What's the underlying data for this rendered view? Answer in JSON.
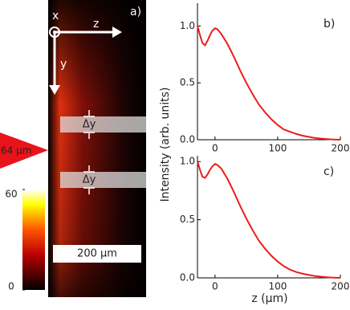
{
  "image_panel": {
    "panel_label": "a)",
    "axis_x": "x",
    "axis_z": "z",
    "axis_y": "y",
    "delta_labels": [
      "Δy",
      "Δy"
    ],
    "marker_label": "64 μm",
    "scale_bar": "200 μm",
    "colorbar": {
      "lim": [
        0,
        60
      ],
      "ticks": [
        0,
        60
      ]
    }
  },
  "chart_data": [
    {
      "type": "line",
      "panel_label": "b)",
      "ylabel": "Intensity (arb. units)",
      "x": [
        -28,
        -24,
        -20,
        -16,
        -12,
        -8,
        -4,
        0,
        4,
        10,
        20,
        30,
        40,
        50,
        60,
        70,
        80,
        90,
        100,
        110,
        120,
        130,
        140,
        150,
        160,
        170,
        180,
        190,
        200
      ],
      "series": [
        {
          "color": "#ee1c1c",
          "values": [
            1.0,
            0.92,
            0.85,
            0.83,
            0.87,
            0.92,
            0.96,
            0.98,
            0.97,
            0.93,
            0.84,
            0.73,
            0.61,
            0.5,
            0.4,
            0.31,
            0.24,
            0.18,
            0.13,
            0.09,
            0.07,
            0.05,
            0.035,
            0.025,
            0.015,
            0.01,
            0.005,
            0.002,
            0.0
          ]
        }
      ],
      "xlim": [
        -28,
        200
      ],
      "ylim": [
        0,
        1.2
      ],
      "xticks": [
        0,
        100,
        200
      ],
      "yticks": [
        {
          "value": 0,
          "label": "0.0"
        },
        {
          "value": 0.5,
          "label": "0.5"
        },
        {
          "value": 1,
          "label": "1.0"
        }
      ]
    },
    {
      "type": "line",
      "panel_label": "c)",
      "xlabel": "z (μm)",
      "x": [
        -28,
        -24,
        -20,
        -16,
        -12,
        -8,
        -4,
        0,
        4,
        10,
        20,
        30,
        40,
        50,
        60,
        70,
        80,
        90,
        100,
        110,
        120,
        130,
        140,
        150,
        160,
        170,
        180,
        190,
        200
      ],
      "series": [
        {
          "color": "#ee1c1c",
          "values": [
            1.0,
            0.93,
            0.87,
            0.86,
            0.89,
            0.93,
            0.96,
            0.98,
            0.97,
            0.94,
            0.85,
            0.74,
            0.62,
            0.51,
            0.41,
            0.32,
            0.25,
            0.19,
            0.14,
            0.1,
            0.07,
            0.05,
            0.035,
            0.025,
            0.015,
            0.01,
            0.005,
            0.002,
            0.0
          ]
        }
      ],
      "xlim": [
        -28,
        200
      ],
      "ylim": [
        0,
        1.05
      ],
      "xticks": [
        0,
        100,
        200
      ],
      "yticks": [
        {
          "value": 0,
          "label": "0.0"
        },
        {
          "value": 0.5,
          "label": "0.5"
        },
        {
          "value": 1,
          "label": "1.0"
        }
      ]
    }
  ]
}
